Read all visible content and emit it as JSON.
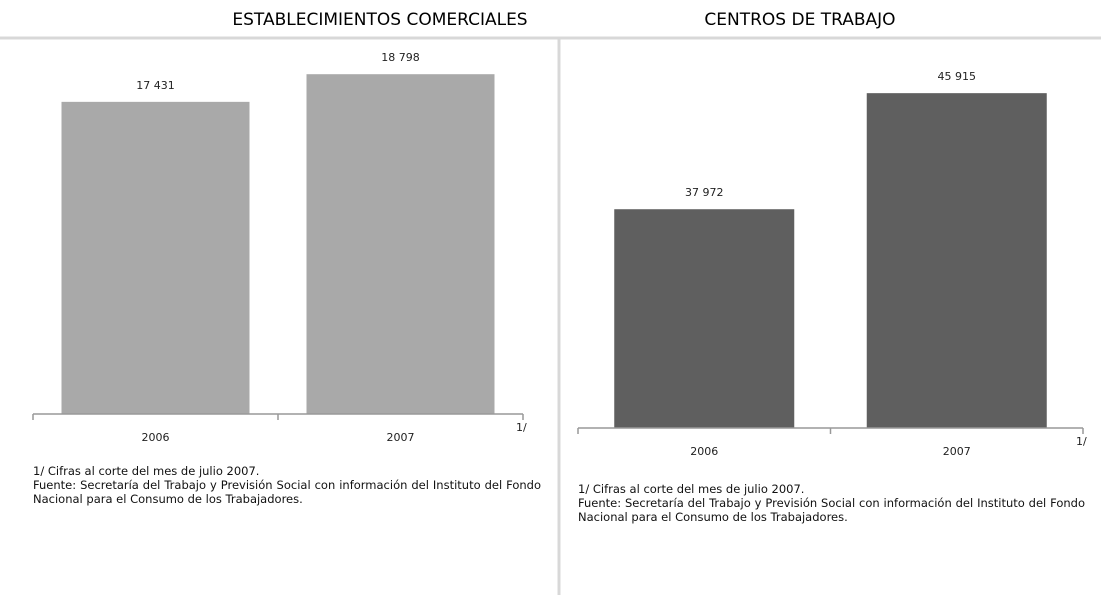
{
  "chart_data": [
    {
      "type": "bar",
      "title": "ESTABLECIMIENTOS COMERCIALES",
      "categories": [
        "2006",
        "2007"
      ],
      "values": [
        17431,
        18798
      ],
      "value_labels": [
        "17 431",
        "18 798"
      ],
      "color": "#a9a9a9",
      "ylim": [
        2000,
        19500
      ],
      "axis_note": "1/",
      "note": "1/ Cifras al corte del mes de julio 2007.",
      "source": "Fuente: Secretaría del Trabajo y Previsión Social con información del Instituto del Fondo Nacional para el Consumo de los Trabajadores."
    },
    {
      "type": "bar",
      "title": "CENTROS DE TRABAJO",
      "categories": [
        "2006",
        "2007"
      ],
      "values": [
        37972,
        45915
      ],
      "value_labels": [
        "37 972",
        "45 915"
      ],
      "color": "#5f5f5f",
      "ylim": [
        23000,
        47500
      ],
      "axis_note": "1/",
      "note": "1/ Cifras al corte del mes de julio 2007.",
      "source": "Fuente: Secretaría del Trabajo y Previsión Social con información del Instituto del Fondo Nacional para el Consumo de los Trabajadores."
    }
  ]
}
